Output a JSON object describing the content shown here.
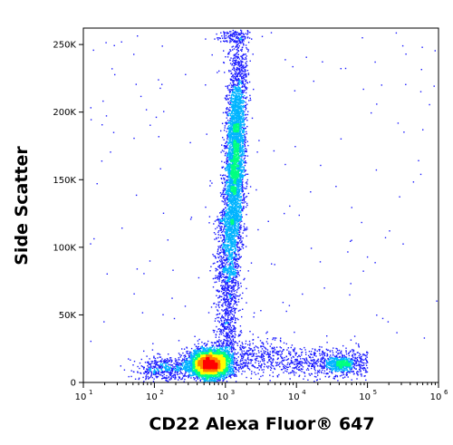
{
  "chart_data": {
    "type": "scatter",
    "xlabel": "CD22 Alexa Fluor® 647",
    "ylabel": "Side Scatter",
    "x_scale": "log",
    "xlim": [
      10,
      1000000
    ],
    "ylim": [
      0,
      262144
    ],
    "x_ticks": [
      {
        "base": "10",
        "exp": "1",
        "value": 10
      },
      {
        "base": "10",
        "exp": "2",
        "value": 100
      },
      {
        "base": "10",
        "exp": "3",
        "value": 1000
      },
      {
        "base": "10",
        "exp": "4",
        "value": 10000
      },
      {
        "base": "10",
        "exp": "5",
        "value": 100000
      },
      {
        "base": "10",
        "exp": "6",
        "value": 1000000
      }
    ],
    "y_ticks": [
      {
        "label": "0",
        "value": 0
      },
      {
        "label": "50K",
        "value": 50000
      },
      {
        "label": "100K",
        "value": 100000
      },
      {
        "label": "150K",
        "value": 150000
      },
      {
        "label": "200K",
        "value": 200000
      },
      {
        "label": "250K",
        "value": 250000
      }
    ],
    "populations": [
      {
        "center_x": 600,
        "center_y": 14000,
        "density": "high"
      },
      {
        "center_x": 1400,
        "center_y": 165000,
        "density": "medium"
      },
      {
        "center_x": 40000,
        "center_y": 14000,
        "density": "low"
      }
    ],
    "colormap": [
      "#1a1aff",
      "#00b4ff",
      "#00ff80",
      "#ffff00",
      "#ff8000",
      "#ff0000"
    ],
    "grid": false,
    "legend": "none"
  }
}
